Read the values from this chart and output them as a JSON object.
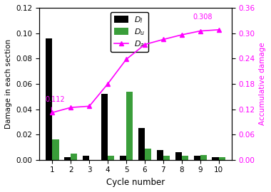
{
  "cycles": [
    1,
    2,
    3,
    4,
    5,
    6,
    7,
    8,
    9,
    10
  ],
  "Dl": [
    0.096,
    0.002,
    0.003,
    0.052,
    0.003,
    0.025,
    0.008,
    0.006,
    0.003,
    0.002
  ],
  "Du": [
    0.016,
    0.005,
    0.0,
    0.003,
    0.054,
    0.009,
    0.003,
    0.003,
    0.004,
    0.002
  ],
  "Da": [
    0.112,
    0.124,
    0.127,
    0.18,
    0.238,
    0.273,
    0.285,
    0.296,
    0.305,
    0.308
  ],
  "Da_annotation_first": "0.112",
  "Da_annotation_last": "0.308",
  "bar_color_Dl": "#000000",
  "bar_color_Du": "#3a9e3a",
  "line_color_Da": "#ff00ff",
  "ylabel_left": "Damage in each section",
  "ylabel_right": "Accumulative damage",
  "xlabel": "Cycle number",
  "ylim_left": [
    0,
    0.12
  ],
  "ylim_right": [
    0,
    0.36
  ],
  "yticks_left": [
    0.0,
    0.02,
    0.04,
    0.06,
    0.08,
    0.1,
    0.12
  ],
  "yticks_right": [
    0.0,
    0.06,
    0.12,
    0.18,
    0.24,
    0.3,
    0.36
  ],
  "bar_width": 0.35,
  "legend_labels": [
    "$D_l$",
    "$D_u$",
    "$D_a$"
  ],
  "figsize": [
    3.8,
    2.7
  ],
  "dpi": 100
}
